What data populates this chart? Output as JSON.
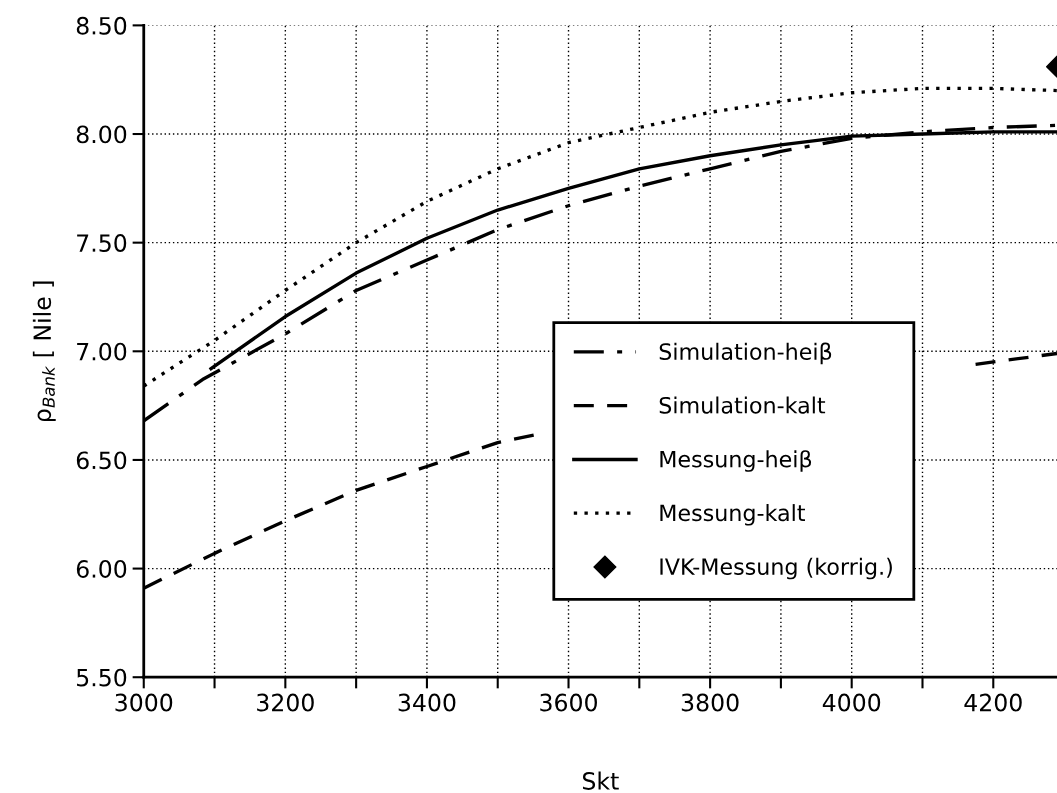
{
  "chart_data": {
    "type": "line",
    "xlabel": "Skt",
    "ylabel": "ρ$_{Bank}$ [ Nile ]",
    "xlim": [
      3000,
      4290
    ],
    "ylim": [
      5.5,
      8.5
    ],
    "xticks": [
      3000,
      {
        "value": 3100,
        "label": null
      },
      3200,
      {
        "value": 3300,
        "label": null
      },
      3400,
      {
        "value": 3500,
        "label": null
      },
      3600,
      {
        "value": 3700,
        "label": null
      },
      3800,
      {
        "value": 3900,
        "label": null
      },
      4000,
      {
        "value": 4100,
        "label": null
      },
      4200
    ],
    "yticks": [
      {
        "value": 5.5,
        "label": "5.50"
      },
      {
        "value": 6.0,
        "label": "6.00"
      },
      {
        "value": 6.5,
        "label": "6.50"
      },
      {
        "value": 7.0,
        "label": "7.00"
      },
      {
        "value": 7.5,
        "label": "7.50"
      },
      {
        "value": 8.0,
        "label": "8.00"
      },
      {
        "value": 8.5,
        "label": "8.50"
      }
    ],
    "grid": true,
    "legend": "right",
    "series": [
      {
        "name": "Simulation-heiβ",
        "color": "#000000",
        "line_style": "dashdot",
        "x": [
          3000,
          3083,
          3200,
          3300,
          3400,
          3500,
          3600,
          3700,
          3800,
          3900,
          4000,
          4100,
          4200,
          4290
        ],
        "values": [
          6.68,
          6.87,
          7.08,
          7.28,
          7.42,
          7.56,
          7.67,
          7.76,
          7.84,
          7.92,
          7.98,
          8.01,
          8.03,
          8.04
        ]
      },
      {
        "name": "Simulation-kalt",
        "color": "#000000",
        "line_style": "dashed",
        "x": [
          3000,
          3100,
          3200,
          3300,
          3400,
          3500,
          3560,
          3800,
          4175,
          4290
        ],
        "values": [
          5.91,
          6.07,
          6.22,
          6.36,
          6.47,
          6.58,
          6.62,
          null,
          6.94,
          6.99
        ]
      },
      {
        "name": "Messung-heiβ",
        "color": "#000000",
        "line_style": "solid",
        "x": [
          3095,
          3200,
          3300,
          3400,
          3500,
          3600,
          3700,
          3800,
          3900,
          4000,
          4100,
          4200,
          4290
        ],
        "values": [
          6.92,
          7.16,
          7.36,
          7.52,
          7.65,
          7.75,
          7.84,
          7.9,
          7.95,
          7.99,
          8.0,
          8.01,
          8.01
        ]
      },
      {
        "name": "Messung-kalt",
        "color": "#000000",
        "line_style": "dotted",
        "x": [
          3000,
          3100,
          3200,
          3300,
          3400,
          3500,
          3600,
          3700,
          3800,
          3900,
          4000,
          4100,
          4200,
          4290
        ],
        "values": [
          6.84,
          7.05,
          7.28,
          7.5,
          7.69,
          7.84,
          7.96,
          8.03,
          8.1,
          8.15,
          8.19,
          8.21,
          8.21,
          8.2
        ]
      },
      {
        "name": "IVK-Messung (korrig.)",
        "color": "#000000",
        "type": "scatter",
        "marker": "diamond",
        "x": [
          4290
        ],
        "values": [
          8.31
        ]
      }
    ]
  }
}
